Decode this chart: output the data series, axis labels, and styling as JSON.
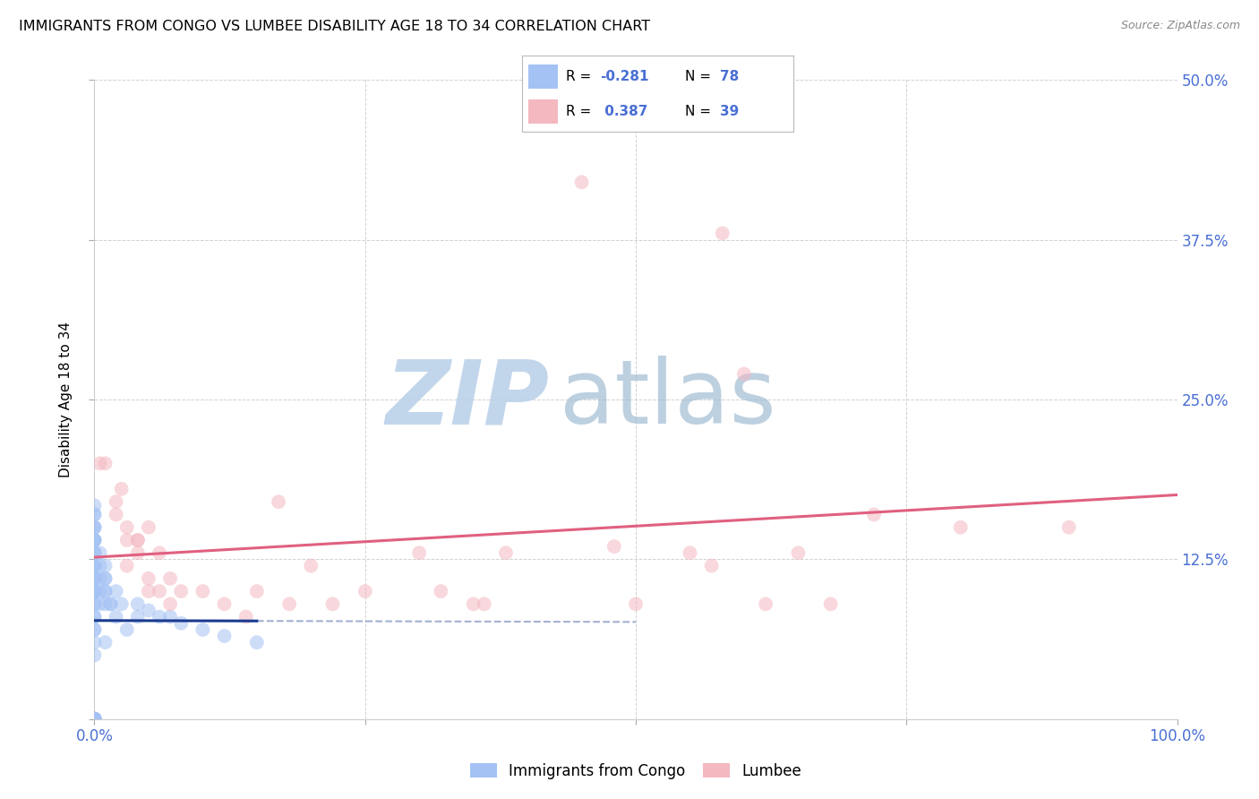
{
  "title": "IMMIGRANTS FROM CONGO VS LUMBEE DISABILITY AGE 18 TO 34 CORRELATION CHART",
  "source": "Source: ZipAtlas.com",
  "ylabel": "Disability Age 18 to 34",
  "xlim": [
    0.0,
    1.0
  ],
  "ylim": [
    0.0,
    0.5
  ],
  "xtick_positions": [
    0.0,
    0.25,
    0.5,
    0.75,
    1.0
  ],
  "ytick_positions": [
    0.0,
    0.125,
    0.25,
    0.375,
    0.5
  ],
  "right_ytick_labels": [
    "",
    "12.5%",
    "25.0%",
    "37.5%",
    "50.0%"
  ],
  "bottom_xtick_labels": [
    "0.0%",
    "",
    "",
    "",
    "100.0%"
  ],
  "color_blue": "#a4c2f4",
  "color_pink": "#f4b8c1",
  "line_color_blue": "#1a3a8f",
  "line_color_pink": "#e06080",
  "text_color_axis": "#4a6fd4",
  "legend_text_color": "#4a6fd4",
  "legend_r_color": "#4a6fd4",
  "legend_n_color": "#4a6fd4",
  "watermark_zip_color": "#b8cfe8",
  "watermark_atlas_color": "#9ab8d0",
  "congo_points": [
    [
      0.0,
      0.167
    ],
    [
      0.0,
      0.0
    ],
    [
      0.0,
      0.0
    ],
    [
      0.0,
      0.0
    ],
    [
      0.0,
      0.0
    ],
    [
      0.0,
      0.0
    ],
    [
      0.0,
      0.0
    ],
    [
      0.0,
      0.0
    ],
    [
      0.0,
      0.0
    ],
    [
      0.0,
      0.0
    ],
    [
      0.0,
      0.0
    ],
    [
      0.0,
      0.0
    ],
    [
      0.0,
      0.0
    ],
    [
      0.0,
      0.0
    ],
    [
      0.0,
      0.0
    ],
    [
      0.0,
      0.0
    ],
    [
      0.0,
      0.0
    ],
    [
      0.0,
      0.0
    ],
    [
      0.0,
      0.0
    ],
    [
      0.0,
      0.0
    ],
    [
      0.0,
      0.0
    ],
    [
      0.0,
      0.05
    ],
    [
      0.0,
      0.06
    ],
    [
      0.0,
      0.07
    ],
    [
      0.0,
      0.07
    ],
    [
      0.0,
      0.08
    ],
    [
      0.0,
      0.08
    ],
    [
      0.0,
      0.09
    ],
    [
      0.0,
      0.09
    ],
    [
      0.0,
      0.1
    ],
    [
      0.0,
      0.1
    ],
    [
      0.0,
      0.1
    ],
    [
      0.0,
      0.1
    ],
    [
      0.0,
      0.11
    ],
    [
      0.0,
      0.11
    ],
    [
      0.0,
      0.11
    ],
    [
      0.0,
      0.12
    ],
    [
      0.0,
      0.12
    ],
    [
      0.0,
      0.12
    ],
    [
      0.0,
      0.13
    ],
    [
      0.0,
      0.13
    ],
    [
      0.0,
      0.13
    ],
    [
      0.0,
      0.14
    ],
    [
      0.0,
      0.14
    ],
    [
      0.0,
      0.14
    ],
    [
      0.0,
      0.14
    ],
    [
      0.0,
      0.15
    ],
    [
      0.0,
      0.15
    ],
    [
      0.0,
      0.15
    ],
    [
      0.0,
      0.16
    ],
    [
      0.0,
      0.16
    ],
    [
      0.005,
      0.09
    ],
    [
      0.005,
      0.1
    ],
    [
      0.005,
      0.11
    ],
    [
      0.005,
      0.12
    ],
    [
      0.005,
      0.13
    ],
    [
      0.01,
      0.06
    ],
    [
      0.01,
      0.09
    ],
    [
      0.01,
      0.1
    ],
    [
      0.01,
      0.1
    ],
    [
      0.01,
      0.11
    ],
    [
      0.01,
      0.11
    ],
    [
      0.01,
      0.12
    ],
    [
      0.015,
      0.09
    ],
    [
      0.015,
      0.09
    ],
    [
      0.02,
      0.08
    ],
    [
      0.02,
      0.1
    ],
    [
      0.025,
      0.09
    ],
    [
      0.03,
      0.07
    ],
    [
      0.04,
      0.08
    ],
    [
      0.04,
      0.09
    ],
    [
      0.05,
      0.085
    ],
    [
      0.06,
      0.08
    ],
    [
      0.07,
      0.08
    ],
    [
      0.08,
      0.075
    ],
    [
      0.1,
      0.07
    ],
    [
      0.12,
      0.065
    ],
    [
      0.15,
      0.06
    ]
  ],
  "lumbee_points": [
    [
      0.005,
      0.2
    ],
    [
      0.01,
      0.2
    ],
    [
      0.02,
      0.16
    ],
    [
      0.02,
      0.17
    ],
    [
      0.025,
      0.18
    ],
    [
      0.03,
      0.12
    ],
    [
      0.03,
      0.14
    ],
    [
      0.03,
      0.15
    ],
    [
      0.04,
      0.13
    ],
    [
      0.04,
      0.14
    ],
    [
      0.04,
      0.14
    ],
    [
      0.05,
      0.1
    ],
    [
      0.05,
      0.11
    ],
    [
      0.05,
      0.15
    ],
    [
      0.06,
      0.1
    ],
    [
      0.06,
      0.13
    ],
    [
      0.07,
      0.09
    ],
    [
      0.07,
      0.11
    ],
    [
      0.08,
      0.1
    ],
    [
      0.1,
      0.1
    ],
    [
      0.12,
      0.09
    ],
    [
      0.14,
      0.08
    ],
    [
      0.15,
      0.1
    ],
    [
      0.17,
      0.17
    ],
    [
      0.18,
      0.09
    ],
    [
      0.2,
      0.12
    ],
    [
      0.22,
      0.09
    ],
    [
      0.25,
      0.1
    ],
    [
      0.3,
      0.13
    ],
    [
      0.32,
      0.1
    ],
    [
      0.35,
      0.09
    ],
    [
      0.36,
      0.09
    ],
    [
      0.38,
      0.13
    ],
    [
      0.45,
      0.42
    ],
    [
      0.48,
      0.135
    ],
    [
      0.5,
      0.09
    ],
    [
      0.55,
      0.13
    ],
    [
      0.57,
      0.12
    ],
    [
      0.58,
      0.38
    ],
    [
      0.6,
      0.27
    ],
    [
      0.62,
      0.09
    ],
    [
      0.65,
      0.13
    ],
    [
      0.68,
      0.09
    ],
    [
      0.72,
      0.16
    ],
    [
      0.8,
      0.15
    ],
    [
      0.9,
      0.15
    ]
  ]
}
